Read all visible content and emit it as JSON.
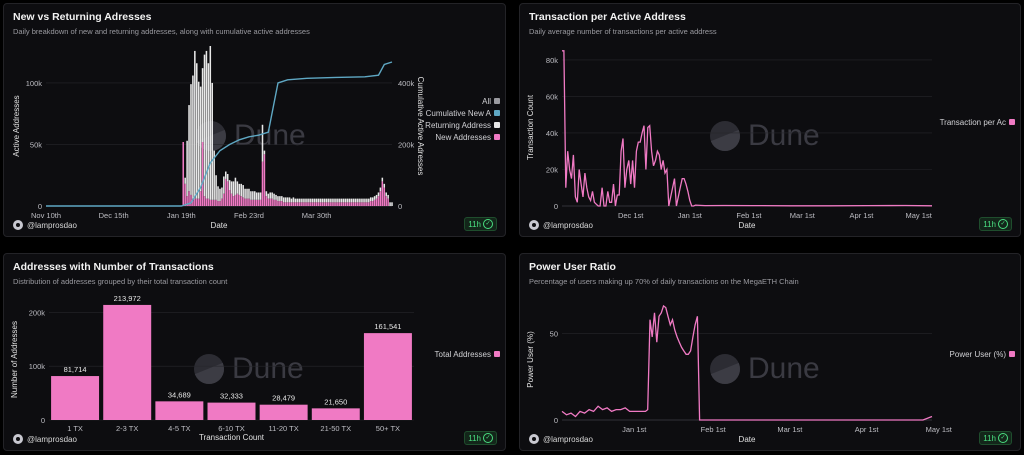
{
  "footer": {
    "handle": "@lamprosdao",
    "freshness": "11h"
  },
  "panels": [
    {
      "title": "New vs Returning Adresses",
      "subtitle": "Daily breakdown of new and returning addresses, along with cumulative active addresses",
      "watermark": "Dune",
      "chart_data": {
        "type": "bar",
        "xlabel": "Date",
        "ylabel": "Active Addresses",
        "y2label": "Cumulative Active Adresses",
        "x_ticks": [
          "Nov 10th",
          "Dec 15th",
          "Jan 19th",
          "Feb 23rd",
          "Mar 30th"
        ],
        "y_ticks": [
          "0",
          "50k",
          "100k"
        ],
        "y2_ticks": [
          "0",
          "200k",
          "400k"
        ],
        "ylim": [
          0,
          130000
        ],
        "y2lim": [
          0,
          520000
        ],
        "legend": [
          {
            "name": "All",
            "color": "#9a9aa0"
          },
          {
            "name": "Cumulative New A",
            "color": "#5fa8c4"
          },
          {
            "name": "Returning Address",
            "color": "#e8e8e8"
          },
          {
            "name": "New Addresses",
            "color": "#f07ac4"
          }
        ],
        "legend_position": "right",
        "days": 180,
        "new_addresses": [
          0,
          0,
          0,
          0,
          0,
          0,
          0,
          0,
          0,
          0,
          0,
          0,
          0,
          0,
          0,
          0,
          0,
          0,
          0,
          0,
          0,
          0,
          0,
          0,
          0,
          0,
          0,
          0,
          0,
          0,
          0,
          0,
          0,
          0,
          0,
          0,
          0,
          0,
          0,
          0,
          0,
          0,
          0,
          0,
          0,
          0,
          0,
          0,
          0,
          0,
          0,
          0,
          0,
          0,
          0,
          0,
          0,
          0,
          0,
          0,
          0,
          0,
          0,
          0,
          0,
          0,
          0,
          0,
          0,
          0,
          0,
          52000,
          18000,
          8000,
          12000,
          9000,
          6000,
          6000,
          6000,
          6000,
          12000,
          52000,
          8000,
          6000,
          6000,
          5000,
          5000,
          5000,
          5000,
          4000,
          4000,
          6000,
          10000,
          22000,
          20000,
          13000,
          10000,
          8000,
          9000,
          10000,
          9000,
          8000,
          7000,
          6000,
          6000,
          6000,
          5000,
          5000,
          5000,
          5000,
          5000,
          5000,
          36000,
          42000,
          8000,
          6000,
          6000,
          6000,
          5000,
          5000,
          4000,
          4000,
          4000,
          3000,
          3000,
          3000,
          3000,
          3000,
          3000,
          3000,
          3000,
          3000,
          3000,
          3000,
          3000,
          3000,
          3000,
          3000,
          3000,
          3000,
          3000,
          3000,
          3000,
          3000,
          3000,
          3000,
          3000,
          3000,
          3000,
          3000,
          3000,
          3000,
          3000,
          3000,
          3000,
          3000,
          3000,
          3000,
          3000,
          3000,
          3000,
          3000,
          3000,
          3000,
          3000,
          3000,
          3000,
          3000,
          4000,
          4000,
          5000,
          6000,
          8000,
          12000,
          20000,
          15000,
          8000,
          6000
        ],
        "returning_addresses": [
          0,
          0,
          0,
          0,
          0,
          0,
          0,
          0,
          0,
          0,
          0,
          0,
          0,
          0,
          0,
          0,
          0,
          0,
          0,
          0,
          0,
          0,
          0,
          0,
          0,
          0,
          0,
          0,
          0,
          0,
          0,
          0,
          0,
          0,
          0,
          0,
          0,
          0,
          0,
          0,
          0,
          0,
          0,
          0,
          0,
          0,
          0,
          0,
          0,
          0,
          0,
          0,
          0,
          0,
          0,
          0,
          0,
          0,
          0,
          0,
          0,
          0,
          0,
          0,
          0,
          0,
          0,
          0,
          0,
          0,
          0,
          0,
          5000,
          45000,
          70000,
          90000,
          100000,
          120000,
          110000,
          95000,
          85000,
          60000,
          115000,
          120000,
          110000,
          125000,
          95000,
          40000,
          20000,
          12000,
          10000,
          9000,
          14000,
          6000,
          6000,
          8000,
          10000,
          12000,
          14000,
          10000,
          9000,
          10000,
          10000,
          8000,
          8000,
          8000,
          7000,
          7000,
          7000,
          6000,
          6000,
          6000,
          30000,
          3000,
          4000,
          4000,
          5000,
          5000,
          5000,
          4000,
          4000,
          4000,
          4000,
          4000,
          4000,
          4000,
          4000,
          3000,
          4000,
          3000,
          3000,
          3000,
          3000,
          3000,
          3000,
          3000,
          3000,
          3000,
          3000,
          3000,
          3000,
          3000,
          3000,
          3000,
          3000,
          3000,
          3000,
          3000,
          3000,
          3000,
          3000,
          3000,
          3000,
          3000,
          3000,
          3000,
          3000,
          3000,
          3000,
          3000,
          3000,
          3000,
          3000,
          3000,
          3000,
          3000,
          3000,
          3000,
          3000,
          3000,
          3000,
          3000,
          3000,
          3000,
          3000,
          3000,
          3000,
          3000,
          3000,
          3000,
          3000,
          3000,
          3000,
          3000,
          3000,
          3000
        ],
        "cumulative": [
          [
            0,
            0
          ],
          [
            70,
            0
          ],
          [
            75,
            10000
          ],
          [
            80,
            60000
          ],
          [
            85,
            140000
          ],
          [
            90,
            180000
          ],
          [
            95,
            200000
          ],
          [
            100,
            215000
          ],
          [
            105,
            225000
          ],
          [
            110,
            230000
          ],
          [
            115,
            240000
          ],
          [
            120,
            400000
          ],
          [
            125,
            410000
          ],
          [
            135,
            415000
          ],
          [
            150,
            418000
          ],
          [
            165,
            420000
          ],
          [
            172,
            425000
          ],
          [
            175,
            460000
          ],
          [
            179,
            468000
          ]
        ]
      }
    },
    {
      "title": "Transaction per Active Address",
      "subtitle": "Daily average number of transactions per active address",
      "watermark": "Dune",
      "chart_data": {
        "type": "line",
        "xlabel": "Date",
        "ylabel": "Transaction Count",
        "x_ticks": [
          "Dec 1st",
          "Jan 1st",
          "Feb 1st",
          "Mar 1st",
          "Apr 1st",
          "May 1st"
        ],
        "y_ticks": [
          "0",
          "20k",
          "40k",
          "60k",
          "80k"
        ],
        "ylim": [
          0,
          86000
        ],
        "series": [
          {
            "name": "Transaction per Ac",
            "color": "#f07ac4"
          }
        ],
        "legend_position": "right",
        "days": 195,
        "x": [
          0,
          1,
          2,
          3,
          4,
          5,
          6,
          7,
          8,
          9,
          10,
          11,
          12,
          13,
          14,
          15,
          16,
          17,
          18,
          19,
          20,
          21,
          22,
          23,
          24,
          25,
          26,
          27,
          28,
          29,
          30,
          31,
          32,
          33,
          34,
          35,
          36,
          37,
          38,
          39,
          40,
          41,
          42,
          43,
          44,
          45,
          46,
          47,
          48,
          49,
          50,
          51,
          52,
          53,
          54,
          55,
          56,
          57,
          58,
          59,
          60,
          61,
          62,
          63,
          64,
          65,
          66,
          67,
          68,
          69,
          70,
          75,
          85,
          100,
          120,
          140,
          160,
          180,
          194
        ],
        "values": [
          85000,
          85000,
          10000,
          30000,
          20000,
          15000,
          28000,
          5000,
          2000,
          20000,
          12000,
          5000,
          18000,
          10000,
          5000,
          3000,
          8000,
          2000,
          1000,
          0,
          0,
          10000,
          0,
          0,
          8000,
          2000,
          2000,
          12000,
          0,
          6000,
          6000,
          30000,
          37000,
          10000,
          20000,
          25000,
          12000,
          25000,
          10000,
          30000,
          35000,
          35000,
          40000,
          44000,
          20000,
          43000,
          44000,
          30000,
          22000,
          25000,
          30000,
          28000,
          20000,
          25000,
          18000,
          20000,
          0,
          5000,
          10000,
          15000,
          0,
          5000,
          10000,
          15000,
          15000,
          12000,
          8000,
          3000,
          0,
          0,
          500,
          200,
          300,
          200,
          100,
          100,
          200,
          300,
          100
        ]
      }
    },
    {
      "title": "Addresses with Number of Transactions",
      "subtitle": "Distribution of addresses grouped by their total transaction count",
      "watermark": "Dune",
      "chart_data": {
        "type": "bar",
        "xlabel": "Transaction Count",
        "ylabel": "Number of Addresses",
        "categories": [
          "1 TX",
          "2-3 TX",
          "4-5 TX",
          "6-10 TX",
          "11-20 TX",
          "21-50 TX",
          "50+ TX"
        ],
        "values": [
          81714,
          213972,
          34689,
          32333,
          28479,
          21650,
          161541
        ],
        "data_labels": [
          "81,714",
          "213,972",
          "34,689",
          "32,333",
          "28,479",
          "21,650",
          "161,541"
        ],
        "y_ticks": [
          "0",
          "100k",
          "200k"
        ],
        "ylim": [
          0,
          225000
        ],
        "series": [
          {
            "name": "Total Addresses",
            "color": "#f07ac4"
          }
        ],
        "legend_position": "right"
      }
    },
    {
      "title": "Power User Ratio",
      "subtitle": "Percentage of users making up 70% of daily transactions on the MegaETH Chain",
      "watermark": "Dune",
      "chart_data": {
        "type": "line",
        "xlabel": "Date",
        "ylabel": "Power User (%)",
        "x_ticks": [
          "Jan 1st",
          "Feb 1st",
          "Mar 1st",
          "Apr 1st",
          "May 1st"
        ],
        "y_ticks": [
          "0",
          "50"
        ],
        "ylim": [
          0,
          70
        ],
        "series": [
          {
            "name": "Power User (%)",
            "color": "#f07ac4"
          }
        ],
        "legend_position": "right",
        "days": 165,
        "x": [
          0,
          2,
          4,
          6,
          8,
          10,
          12,
          14,
          16,
          18,
          20,
          22,
          24,
          26,
          28,
          30,
          32,
          34,
          36,
          37,
          38,
          39,
          40,
          41,
          42,
          43,
          44,
          45,
          46,
          47,
          48,
          49,
          50,
          51,
          52,
          53,
          54,
          55,
          56,
          57,
          58,
          59,
          60,
          61,
          62,
          63,
          64,
          66,
          70,
          80,
          100,
          120,
          140,
          160,
          164
        ],
        "values": [
          5,
          3,
          4,
          2,
          5,
          4,
          6,
          5,
          8,
          6,
          7,
          5,
          6,
          6,
          7,
          5,
          5,
          5,
          5,
          5,
          6,
          58,
          48,
          62,
          45,
          60,
          62,
          66,
          65,
          60,
          55,
          58,
          52,
          48,
          45,
          42,
          40,
          38,
          38,
          40,
          48,
          55,
          60,
          0,
          0,
          0,
          0,
          0,
          0,
          0,
          0,
          0,
          0,
          0,
          2
        ]
      }
    }
  ]
}
